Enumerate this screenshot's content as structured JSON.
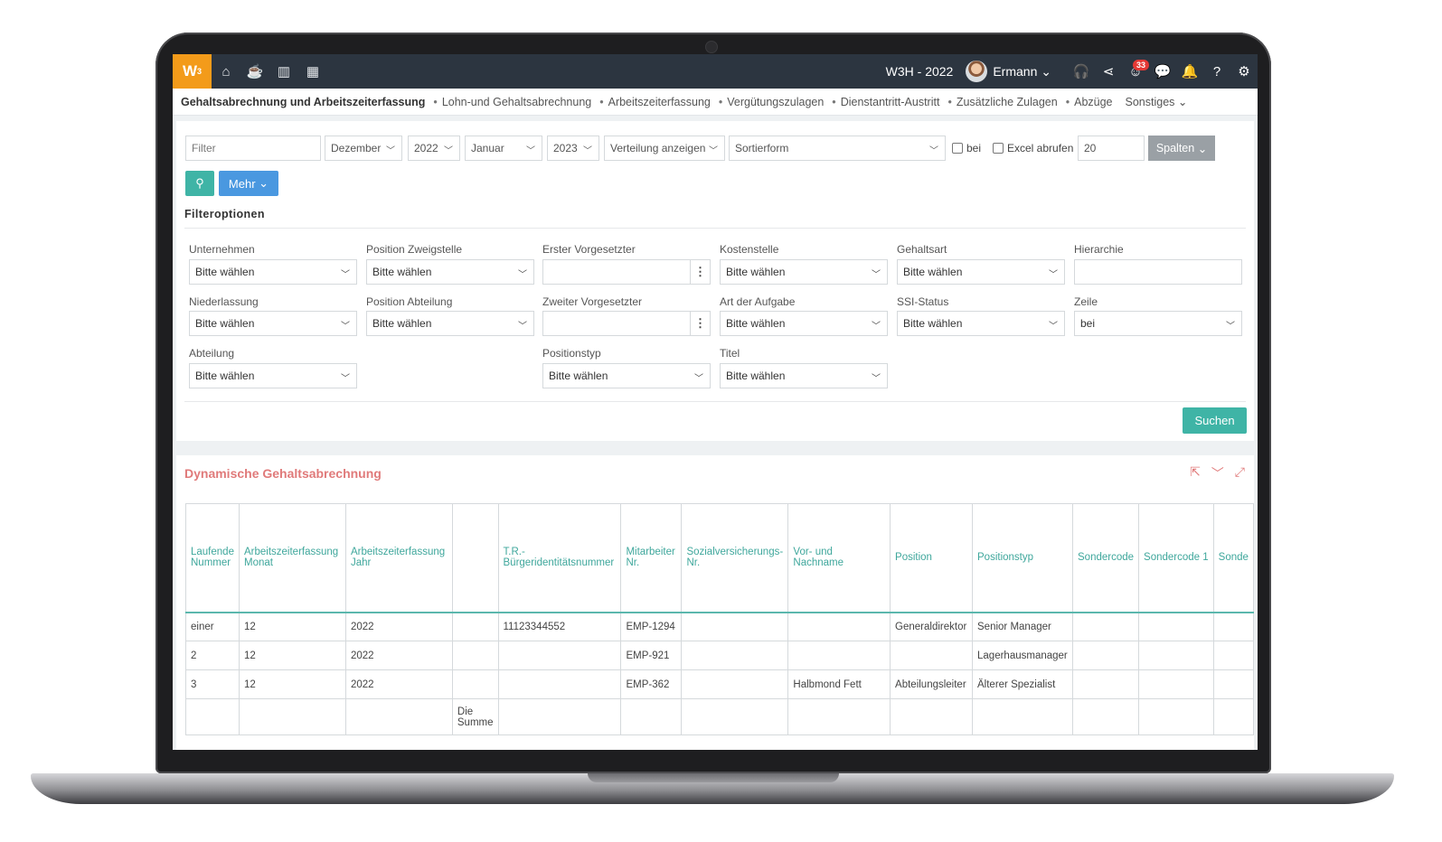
{
  "topbar": {
    "logo": "W",
    "logo_sup": "3",
    "nav_icons": [
      "home-icon",
      "coffee-icon",
      "chart-icon",
      "calendar-icon"
    ],
    "company": "W3H - 2022",
    "user": "Ermann",
    "notification_count": "33"
  },
  "subnav": {
    "active": "Gehaltsabrechnung und Arbeitszeiterfassung",
    "items": [
      "Lohn-und Gehaltsabrechnung",
      "Arbeitszeiterfassung",
      "Vergütungszulagen",
      "Dienstantritt-Austritt",
      "Zusätzliche Zulagen",
      "Abzüge"
    ],
    "more": "Sonstiges"
  },
  "filterbar": {
    "filter_placeholder": "Filter",
    "month_from": "Dezember",
    "year_from": "2022",
    "month_to": "Januar",
    "year_to": "2023",
    "distribution": "Verteilung anzeigen",
    "sort": "Sortierform",
    "chk_bei": "bei",
    "chk_excel": "Excel abrufen",
    "page_size": "20",
    "columns_btn": "Spalten",
    "more_btn": "Mehr"
  },
  "filter_options": {
    "title": "Filteroptionen",
    "placeholder": "Bitte wählen",
    "labels": {
      "unternehmen": "Unternehmen",
      "position_zweigstelle": "Position Zweigstelle",
      "erster_vorgesetzter": "Erster Vorgesetzter",
      "kostenstelle": "Kostenstelle",
      "gehaltsart": "Gehaltsart",
      "hierarchie": "Hierarchie",
      "niederlassung": "Niederlassung",
      "position_abteilung": "Position Abteilung",
      "zweiter_vorgesetzter": "Zweiter Vorgesetzter",
      "art_der_aufgabe": "Art der Aufgabe",
      "ssi_status": "SSI-Status",
      "zeile": "Zeile",
      "abteilung": "Abteilung",
      "positionstyp": "Positionstyp",
      "titel": "Titel"
    },
    "zeile_value": "bei",
    "search_btn": "Suchen"
  },
  "report": {
    "title": "Dynamische Gehaltsabrechnung",
    "columns": [
      "Laufende Nummer",
      "Arbeitszeiterfassung Monat",
      "Arbeitszeiterfassung Jahr",
      "",
      "T.R.-Bürgeridentitätsnummer",
      "Mitarbeiter Nr.",
      "Sozialversicherungs-Nr.",
      "Vor- und Nachname",
      "Position",
      "Positionstyp",
      "Sondercode",
      "Sondercode 1",
      "Sonde"
    ],
    "rows": [
      [
        "einer",
        "12",
        "2022",
        "",
        "11123344552",
        "EMP-1294",
        "",
        "",
        "Generaldirektor",
        "Senior Manager",
        "",
        "",
        ""
      ],
      [
        "2",
        "12",
        "2022",
        "",
        "",
        "EMP-921",
        "",
        "",
        "",
        "Lagerhausmanager",
        "",
        "",
        ""
      ],
      [
        "3",
        "12",
        "2022",
        "",
        "",
        "EMP-362",
        "",
        "Halbmond Fett",
        "Abteilungsleiter",
        "Älterer Spezialist",
        "",
        "",
        ""
      ]
    ],
    "sum_label": "Die Summe"
  }
}
